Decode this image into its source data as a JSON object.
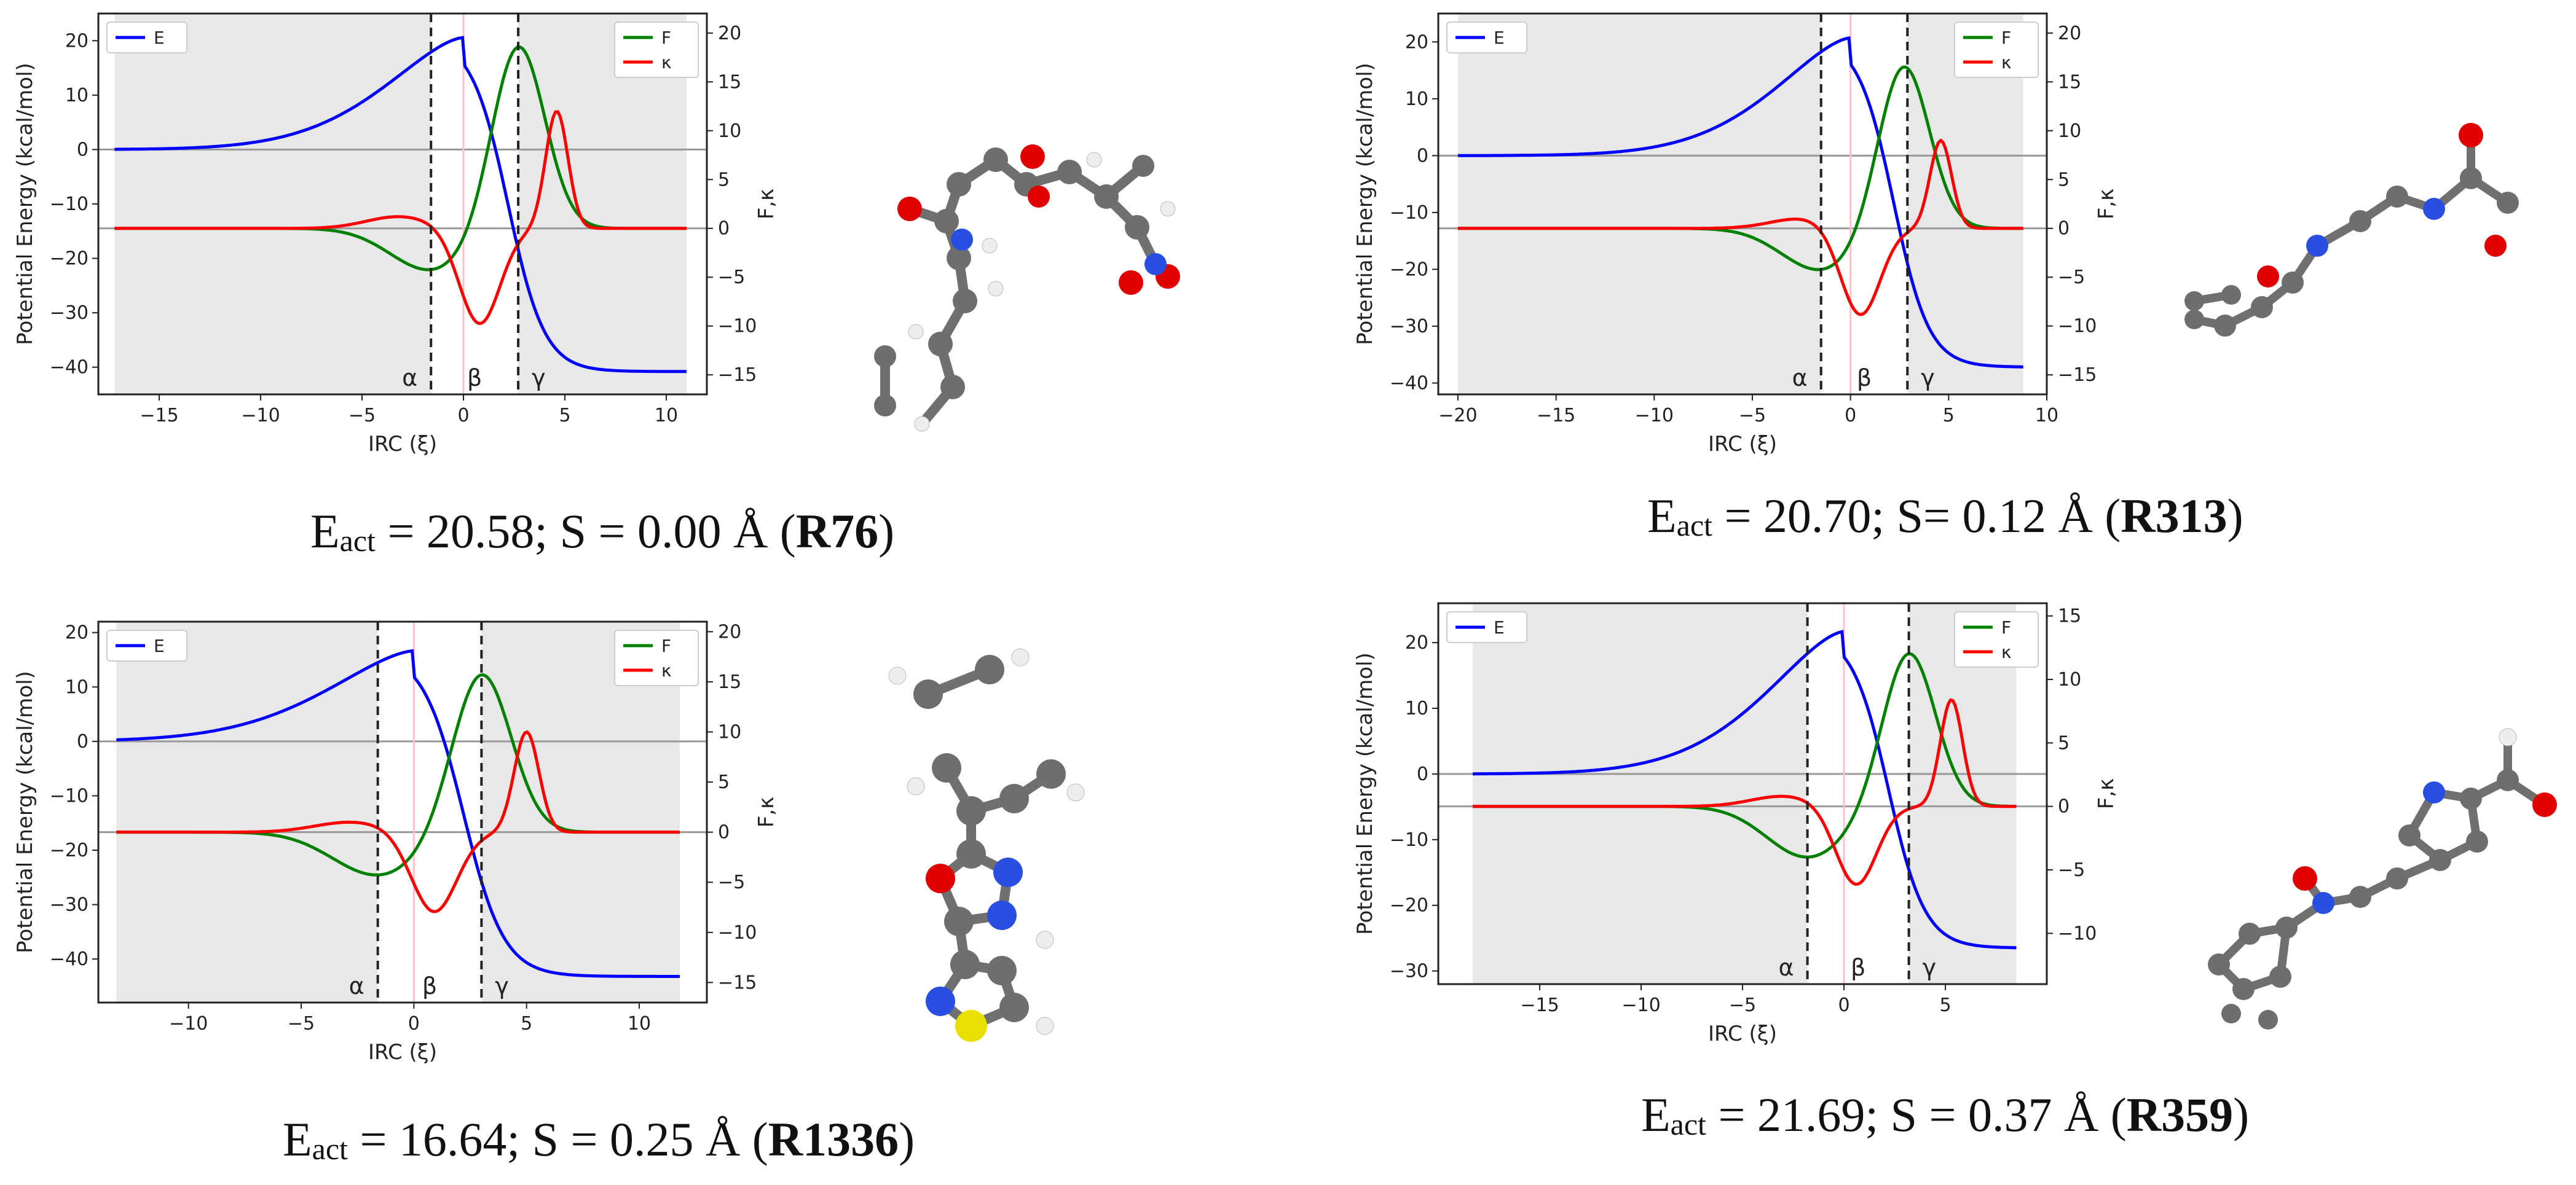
{
  "figure": {
    "x_label": "IRC (ξ)",
    "y_left_label": "Potential Energy (kcal/mol)",
    "y_right_label": "F,κ",
    "region_labels": [
      "α",
      "β",
      "γ"
    ],
    "legend_left": [
      "E"
    ],
    "legend_right": [
      "F",
      "κ"
    ],
    "series_colors": {
      "E": "#0000ff",
      "F": "#008000",
      "kappa": "#ff0000",
      "zero_line": "#999999",
      "shade": "#e8e8e8",
      "ts_line": "#ffc0cb"
    }
  },
  "captions": [
    {
      "e_main": "E",
      "e_sub": "act",
      "text": " = 20.58; S = 0.00 Å (",
      "bold": "R76",
      "tail": ")"
    },
    {
      "e_main": "E",
      "e_sub": "act",
      "text": " = 20.70; S= 0.12 Å (",
      "bold": "R313",
      "tail": ")"
    },
    {
      "e_main": "E",
      "e_sub": "act",
      "text": " = 16.64; S = 0.25 Å (",
      "bold": "R1336",
      "tail": ")"
    },
    {
      "e_main": "E",
      "e_sub": "act",
      "text": " = 21.69; S = 0.37 Å (",
      "bold": "R359",
      "tail": ")"
    }
  ],
  "chart_data": [
    {
      "type": "line",
      "id": "R76",
      "xlim": [
        -18,
        12
      ],
      "ylim": [
        -45,
        25
      ],
      "y2lim": [
        -17,
        22
      ],
      "x_ticks": [
        -15,
        -10,
        -5,
        0,
        5,
        10
      ],
      "y_ticks": [
        -40,
        -30,
        -20,
        -10,
        0,
        10,
        20
      ],
      "y2_ticks": [
        -15,
        -10,
        -5,
        0,
        5,
        10,
        15,
        20
      ],
      "x_start": -17.2,
      "x_end": 11.0,
      "E_end": -40.8,
      "E_peak": 20.58,
      "peak_x": 0.0,
      "alpha": -1.6,
      "gamma": 2.7,
      "F": {
        "min_x": -1.6,
        "min_val": -4.3,
        "max_x": 2.7,
        "max_val": 19.0
      },
      "kappa": {
        "bump_x": -3.2,
        "bump_val": 1.2,
        "min_x": 0.8,
        "min_val": -9.8,
        "max_x": 4.6,
        "max_val": 12.0
      }
    },
    {
      "type": "line",
      "id": "R313",
      "xlim": [
        -21,
        10
      ],
      "ylim": [
        -42,
        25
      ],
      "y2lim": [
        -17,
        22
      ],
      "x_ticks": [
        -20,
        -15,
        -10,
        -5,
        0,
        5,
        10
      ],
      "y_ticks": [
        -40,
        -30,
        -20,
        -10,
        0,
        10,
        20
      ],
      "y2_ticks": [
        -15,
        -10,
        -5,
        0,
        5,
        10,
        15,
        20
      ],
      "x_start": -20.0,
      "x_end": 8.8,
      "E_end": -37.2,
      "E_peak": 20.7,
      "peak_x": 0.0,
      "alpha": -1.5,
      "gamma": 2.9,
      "F": {
        "min_x": -1.5,
        "min_val": -4.3,
        "max_x": 2.7,
        "max_val": 17.0
      },
      "kappa": {
        "bump_x": -2.5,
        "bump_val": 1.0,
        "min_x": 0.5,
        "min_val": -9.0,
        "max_x": 4.6,
        "max_val": 9.0
      }
    },
    {
      "type": "line",
      "id": "R1336",
      "xlim": [
        -14,
        13
      ],
      "ylim": [
        -48,
        22
      ],
      "y2lim": [
        -17,
        21
      ],
      "x_ticks": [
        -10,
        -5,
        0,
        5,
        10
      ],
      "y_ticks": [
        -40,
        -30,
        -20,
        -10,
        0,
        10,
        20
      ],
      "y2_ticks": [
        -15,
        -10,
        -5,
        0,
        5,
        10,
        15,
        20
      ],
      "x_start": -13.2,
      "x_end": 11.8,
      "E_end": -43.2,
      "E_peak": 16.64,
      "peak_x": 0.0,
      "alpha": -1.6,
      "gamma": 3.0,
      "F": {
        "min_x": -1.6,
        "min_val": -4.3,
        "max_x": 3.0,
        "max_val": 16.0
      },
      "kappa": {
        "bump_x": -2.8,
        "bump_val": 1.0,
        "min_x": 0.9,
        "min_val": -8.0,
        "max_x": 5.0,
        "max_val": 10.0
      }
    },
    {
      "type": "line",
      "id": "R359",
      "xlim": [
        -20,
        10
      ],
      "ylim": [
        -32,
        26
      ],
      "y2lim": [
        -14,
        16
      ],
      "x_ticks": [
        -15,
        -10,
        -5,
        0,
        5
      ],
      "y_ticks": [
        -30,
        -20,
        -10,
        0,
        10,
        20
      ],
      "y2_ticks": [
        -10,
        -5,
        0,
        5,
        10,
        15
      ],
      "x_start": -18.3,
      "x_end": 8.5,
      "E_end": -26.5,
      "E_peak": 21.69,
      "peak_x": 0.0,
      "alpha": -1.8,
      "gamma": 3.2,
      "F": {
        "min_x": -1.8,
        "min_val": -4.0,
        "max_x": 3.2,
        "max_val": 12.2
      },
      "kappa": {
        "bump_x": -3.0,
        "bump_val": 0.8,
        "min_x": 0.6,
        "min_val": -6.2,
        "max_x": 5.3,
        "max_val": 8.4
      }
    }
  ]
}
